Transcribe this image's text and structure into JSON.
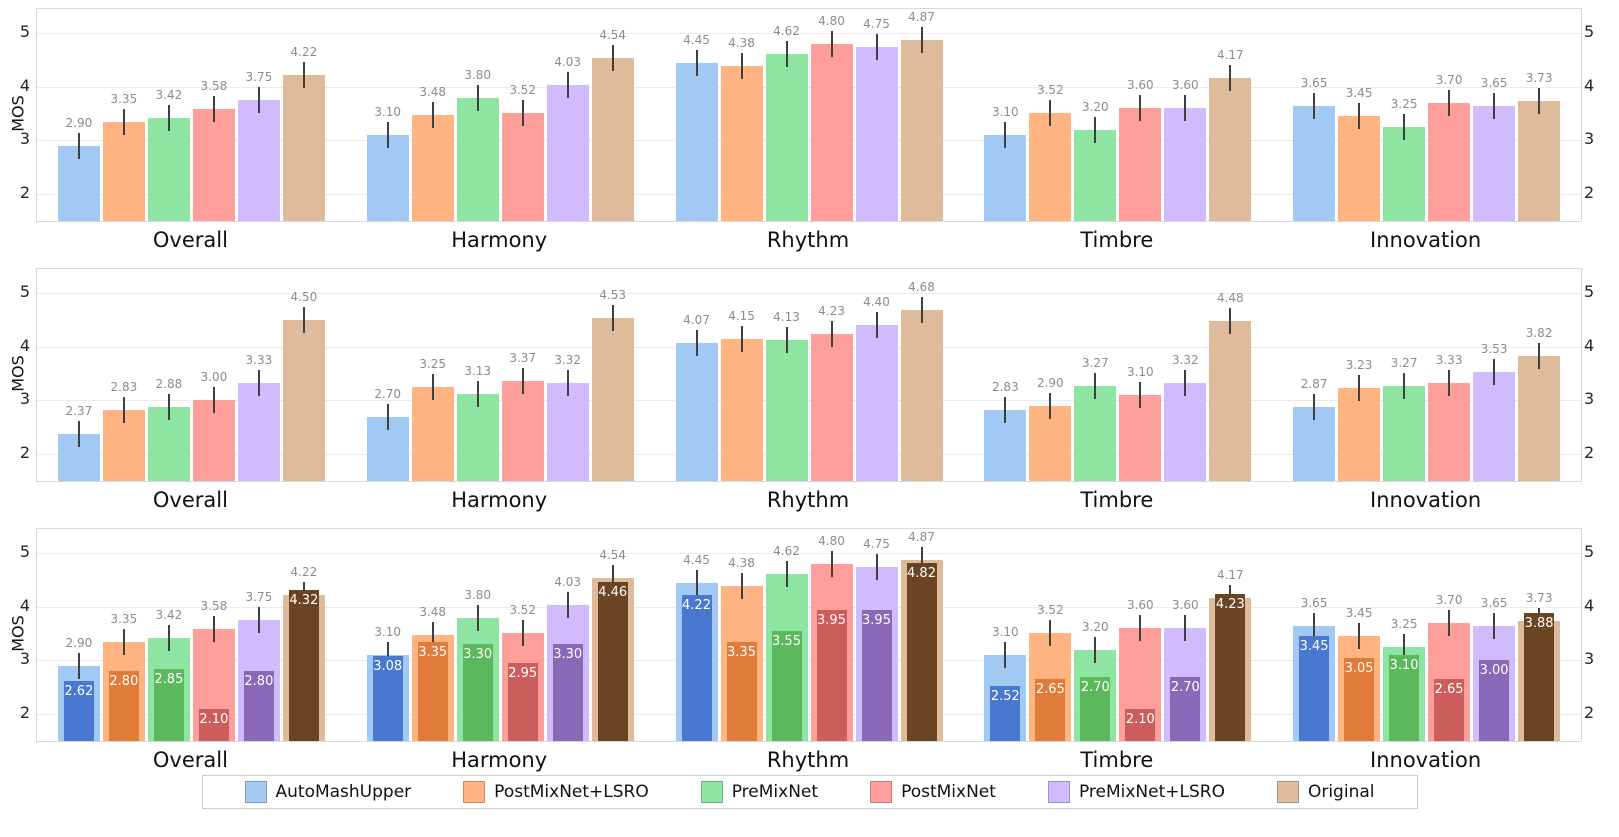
{
  "figure": {
    "background": "#ffffff",
    "grid_color": "#ececec",
    "axis_border_color": "#d9d9d9",
    "value_label_color": "#8c8c8c",
    "error_bar_color": "#3f3f3f",
    "ylabel": "MOS",
    "ytick_labels": [
      "2",
      "3",
      "4",
      "5"
    ]
  },
  "legend": {
    "items": [
      {
        "label": "AutoMashUpper",
        "color": "#a1c9f4"
      },
      {
        "label": "PostMixNet+LSRO",
        "color": "#ffb482"
      },
      {
        "label": "PreMixNet",
        "color": "#8de5a1"
      },
      {
        "label": "PostMixNet",
        "color": "#ff9f9b"
      },
      {
        "label": "PreMixNet+LSRO",
        "color": "#d0bbff"
      },
      {
        "label": "Original",
        "color": "#debb9b"
      }
    ]
  },
  "chart_data": [
    {
      "type": "bar",
      "title": "",
      "ylabel": "MOS",
      "xlabel": "",
      "ylim": [
        1.5,
        5.45
      ],
      "yticks": [
        2,
        3,
        4,
        5
      ],
      "grid": true,
      "error_bars": true,
      "legend_position": "figure-bottom",
      "categories": [
        "Overall",
        "Harmony",
        "Rhythm",
        "Timbre",
        "Innovation"
      ],
      "series": [
        {
          "name": "AutoMashUpper",
          "color": "#a1c9f4",
          "values": [
            2.9,
            3.1,
            4.45,
            3.1,
            3.65
          ]
        },
        {
          "name": "PostMixNet+LSRO",
          "color": "#ffb482",
          "values": [
            3.35,
            3.48,
            4.38,
            3.52,
            3.45
          ]
        },
        {
          "name": "PreMixNet",
          "color": "#8de5a1",
          "values": [
            3.42,
            3.8,
            4.62,
            3.2,
            3.25
          ]
        },
        {
          "name": "PostMixNet",
          "color": "#ff9f9b",
          "values": [
            3.58,
            3.52,
            4.8,
            3.6,
            3.7
          ]
        },
        {
          "name": "PreMixNet+LSRO",
          "color": "#d0bbff",
          "values": [
            3.75,
            4.03,
            4.75,
            3.6,
            3.65
          ]
        },
        {
          "name": "Original",
          "color": "#debb9b",
          "values": [
            4.22,
            4.54,
            4.87,
            4.17,
            3.73
          ]
        }
      ]
    },
    {
      "type": "bar",
      "title": "",
      "ylabel": "MOS",
      "xlabel": "",
      "ylim": [
        1.5,
        5.45
      ],
      "yticks": [
        2,
        3,
        4,
        5
      ],
      "grid": true,
      "error_bars": true,
      "legend_position": "figure-bottom",
      "categories": [
        "Overall",
        "Harmony",
        "Rhythm",
        "Timbre",
        "Innovation"
      ],
      "series": [
        {
          "name": "AutoMashUpper",
          "color": "#a1c9f4",
          "values": [
            2.37,
            2.7,
            4.07,
            2.83,
            2.87
          ]
        },
        {
          "name": "PostMixNet+LSRO",
          "color": "#ffb482",
          "values": [
            2.83,
            3.25,
            4.15,
            2.9,
            3.23
          ]
        },
        {
          "name": "PreMixNet",
          "color": "#8de5a1",
          "values": [
            2.88,
            3.13,
            4.13,
            3.27,
            3.27
          ]
        },
        {
          "name": "PostMixNet",
          "color": "#ff9f9b",
          "values": [
            3.0,
            3.37,
            4.23,
            3.1,
            3.33
          ]
        },
        {
          "name": "PreMixNet+LSRO",
          "color": "#d0bbff",
          "values": [
            3.33,
            3.32,
            4.4,
            3.32,
            3.53
          ]
        },
        {
          "name": "Original",
          "color": "#debb9b",
          "values": [
            4.5,
            4.53,
            4.68,
            4.48,
            3.82
          ]
        }
      ]
    },
    {
      "type": "bar-overlay",
      "title": "",
      "ylabel": "MOS",
      "xlabel": "",
      "ylim": [
        1.5,
        5.45
      ],
      "yticks": [
        2,
        3,
        4,
        5
      ],
      "grid": true,
      "error_bars": true,
      "legend_position": "figure-bottom",
      "categories": [
        "Overall",
        "Harmony",
        "Rhythm",
        "Timbre",
        "Innovation"
      ],
      "series": [
        {
          "name": "AutoMashUpper",
          "color": "#a1c9f4",
          "overlay_color": "#4878d0",
          "values": [
            2.9,
            3.1,
            4.45,
            3.1,
            3.65
          ],
          "overlay_values": [
            2.62,
            3.08,
            4.22,
            2.52,
            3.45
          ]
        },
        {
          "name": "PostMixNet+LSRO",
          "color": "#ffb482",
          "overlay_color": "#e07b39",
          "values": [
            3.35,
            3.48,
            4.38,
            3.52,
            3.45
          ],
          "overlay_values": [
            2.8,
            3.35,
            3.35,
            2.65,
            3.05
          ]
        },
        {
          "name": "PreMixNet",
          "color": "#8de5a1",
          "overlay_color": "#5cb85c",
          "values": [
            3.42,
            3.8,
            4.62,
            3.2,
            3.25
          ],
          "overlay_values": [
            2.85,
            3.3,
            3.55,
            2.7,
            3.1
          ]
        },
        {
          "name": "PostMixNet",
          "color": "#ff9f9b",
          "overlay_color": "#cd5c5c",
          "values": [
            3.58,
            3.52,
            4.8,
            3.6,
            3.7
          ],
          "overlay_values": [
            2.1,
            2.95,
            3.95,
            2.1,
            2.65
          ]
        },
        {
          "name": "PreMixNet+LSRO",
          "color": "#d0bbff",
          "overlay_color": "#8968b8",
          "values": [
            3.75,
            4.03,
            4.75,
            3.6,
            3.65
          ],
          "overlay_values": [
            2.8,
            3.3,
            3.95,
            2.7,
            3.0
          ]
        },
        {
          "name": "Original",
          "color": "#debb9b",
          "overlay_color": "#6b4423",
          "values": [
            4.22,
            4.54,
            4.87,
            4.17,
            3.73
          ],
          "overlay_values": [
            4.32,
            4.46,
            4.82,
            4.23,
            3.88
          ]
        }
      ]
    }
  ]
}
